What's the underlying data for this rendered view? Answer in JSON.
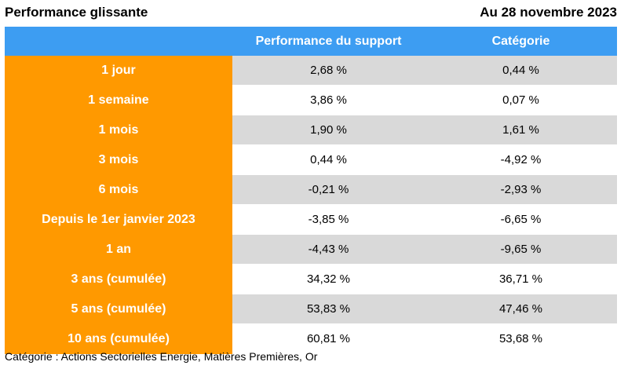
{
  "header": {
    "title": "Performance glissante",
    "date": "Au 28 novembre 2023"
  },
  "table": {
    "columns": [
      "",
      "Performance du support",
      "Catégorie"
    ],
    "rows": [
      {
        "label": "1 jour",
        "support": "2,68 %",
        "categorie": "0,44 %"
      },
      {
        "label": "1 semaine",
        "support": "3,86 %",
        "categorie": "0,07 %"
      },
      {
        "label": "1 mois",
        "support": "1,90 %",
        "categorie": "1,61 %"
      },
      {
        "label": "3 mois",
        "support": "0,44 %",
        "categorie": "-4,92 %"
      },
      {
        "label": "6 mois",
        "support": "-0,21 %",
        "categorie": "-2,93 %"
      },
      {
        "label": "Depuis le 1er janvier 2023",
        "support": "-3,85 %",
        "categorie": "-6,65 %"
      },
      {
        "label": "1 an",
        "support": "-4,43 %",
        "categorie": "-9,65 %"
      },
      {
        "label": "3 ans (cumulée)",
        "support": "34,32 %",
        "categorie": "36,71 %"
      },
      {
        "label": "5 ans (cumulée)",
        "support": "53,83 %",
        "categorie": "47,46 %"
      },
      {
        "label": "10 ans (cumulée)",
        "support": "60,81 %",
        "categorie": "53,68 %"
      }
    ]
  },
  "footnote": "Catégorie : Actions Sectorielles Energie, Matières Premières, Or",
  "colors": {
    "header_bg": "#3d9df2",
    "label_bg": "#ff9900",
    "shaded_row": "#d9d9d9"
  }
}
